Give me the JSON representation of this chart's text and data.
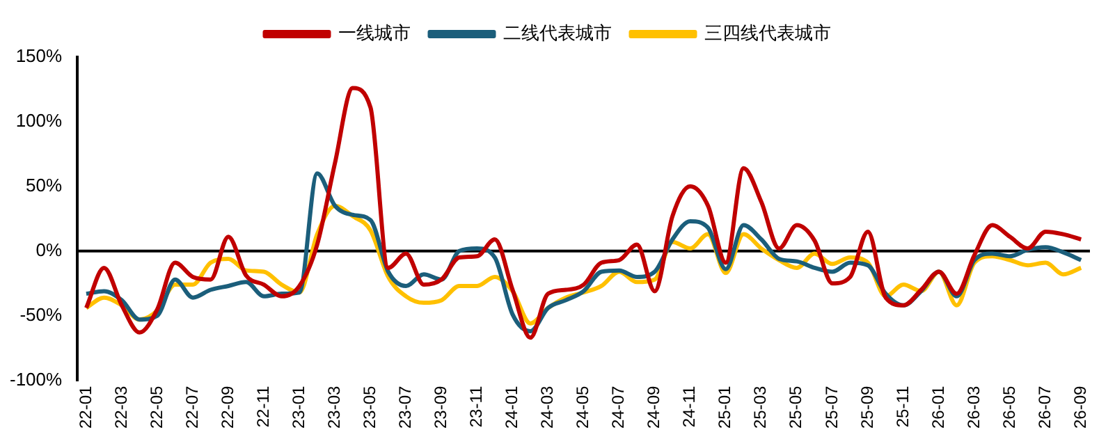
{
  "chart_data": {
    "type": "line",
    "legend": "top",
    "grid": false,
    "marker": "none",
    "categories": [
      "22-01",
      null,
      "22-03",
      null,
      "22-05",
      null,
      "22-07",
      null,
      "22-09",
      null,
      "22-11",
      null,
      "23-01",
      null,
      "23-03",
      null,
      "23-05",
      null,
      "23-07",
      null,
      "23-09",
      null,
      "23-11",
      null,
      "24-01",
      null,
      "24-03",
      null,
      "24-05",
      null,
      "24-07",
      null,
      "24-09",
      null,
      "24-11",
      null,
      "25-01",
      null,
      "25-03",
      null,
      "25-05",
      null,
      "25-07",
      null,
      "25-09",
      null,
      "25-11",
      null,
      "26-01",
      null,
      "26-03",
      null,
      "26-05",
      null,
      "26-07",
      null,
      "26-09"
    ],
    "ylim": [
      -100,
      150
    ],
    "ref_lines": [
      {
        "axis": "y",
        "value": 0,
        "color": "#000000"
      }
    ],
    "yticks": [
      {
        "value": -100,
        "label": "-100%"
      },
      {
        "value": -50,
        "label": "-50%"
      },
      {
        "value": 0,
        "label": "0%"
      },
      {
        "value": 50,
        "label": "50%"
      },
      {
        "value": 100,
        "label": "100%"
      },
      {
        "value": 150,
        "label": "150%"
      }
    ],
    "series": [
      {
        "name": "一线城市",
        "color": "#c00000",
        "values": [
          -44,
          -13,
          -42,
          -63,
          -45,
          -9,
          -20,
          -22,
          11,
          -19,
          -26,
          -35,
          -27,
          5,
          68,
          126,
          111,
          -13,
          -2,
          -26,
          -22,
          -5,
          -4,
          9,
          -30,
          -67,
          -33,
          -30,
          -26,
          -9,
          -7,
          5,
          -31,
          27,
          50,
          35,
          -9,
          64,
          38,
          2,
          20,
          8,
          -25,
          -20,
          15,
          -36,
          -42,
          -30,
          -16,
          -33,
          -3,
          20,
          11,
          2,
          15,
          13,
          9
        ]
      },
      {
        "name": "二线代表城市",
        "color": "#1b5e7b",
        "values": [
          -33,
          -31,
          -38,
          -53,
          -50,
          -22,
          -36,
          -30,
          -27,
          -24,
          -35,
          -33,
          -32,
          60,
          35,
          28,
          24,
          -16,
          -27,
          -18,
          -22,
          0,
          2,
          -5,
          -49,
          -62,
          -44,
          -38,
          -31,
          -16,
          -15,
          -20,
          -16,
          9,
          23,
          18,
          -14,
          20,
          9,
          -6,
          -8,
          -13,
          -16,
          -9,
          -11,
          -33,
          -42,
          -31,
          -16,
          -35,
          -7,
          -2,
          -4,
          1,
          3,
          -1,
          -7
        ]
      },
      {
        "name": "三四线代表城市",
        "color": "#ffc000",
        "values": [
          -44,
          -36,
          -42,
          -53,
          -46,
          -26,
          -26,
          -9,
          -6,
          -15,
          -16,
          -26,
          -32,
          13,
          35,
          27,
          16,
          -20,
          -35,
          -40,
          -38,
          -27,
          -27,
          -20,
          -31,
          -56,
          -44,
          -36,
          -32,
          -27,
          -16,
          -24,
          -22,
          7,
          2,
          13,
          -17,
          13,
          2,
          -7,
          -13,
          -2,
          -10,
          -5,
          -9,
          -35,
          -26,
          -31,
          -16,
          -42,
          -9,
          -4,
          -7,
          -11,
          -9,
          -18,
          -13
        ]
      }
    ]
  }
}
